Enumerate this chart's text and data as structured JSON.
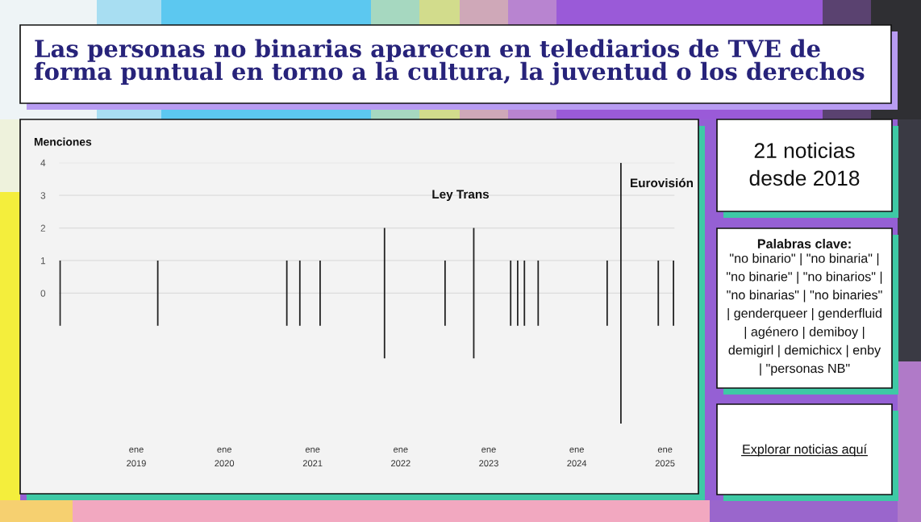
{
  "chart_data": [
    {
      "type": "bar",
      "title": "Las personas no binarias aparecen en telediarios de TVE de\nforma puntual en torno a la cultura, la juventud o los derechos",
      "ylabel": "Menciones",
      "x": [
        "2018-02-19",
        "2019-03-31",
        "2020-09-16",
        "2020-11-09",
        "2021-02-01",
        "2021-10-26",
        "2022-07-04",
        "2022-10-31",
        "2023-04-02",
        "2023-05-01",
        "2023-05-29",
        "2023-07-25",
        "2024-05-06",
        "2024-07-02",
        "2024-12-04",
        "2025-02-05"
      ],
      "base": [
        -1,
        -1,
        -1,
        -1,
        -1,
        -2,
        -1,
        -2,
        -1,
        -1,
        -1,
        -1,
        -1,
        -4,
        -1,
        -1
      ],
      "values": [
        2,
        2,
        2,
        2,
        2,
        4,
        2,
        4,
        2,
        2,
        2,
        2,
        2,
        8,
        2,
        2
      ],
      "color": "#222222",
      "xlim": [
        "2018-02-15",
        "2025-02-09"
      ],
      "xticks": [
        {
          "value": "2019-01-01",
          "label": "ene\n2019"
        },
        {
          "value": "2020-01-01",
          "label": "ene\n2020"
        },
        {
          "value": "2021-01-01",
          "label": "ene\n2021"
        },
        {
          "value": "2022-01-01",
          "label": "ene\n2022"
        },
        {
          "value": "2023-01-01",
          "label": "ene\n2023"
        },
        {
          "value": "2024-01-01",
          "label": "ene\n2024"
        },
        {
          "value": "2025-01-01",
          "label": "ene\n2025"
        }
      ],
      "ylim": [
        -4,
        4
      ],
      "yticks": [
        0,
        1,
        2,
        3,
        4
      ],
      "grid": "y",
      "annotations": [
        "Ley Trans",
        {
          "text": "Eurovisión",
          "x": "2024-07-02",
          "y": 4
        }
      ]
    },
    {
      "type": "other",
      "annotations": [
        "21 noticias\ndesde 2018"
      ]
    },
    {
      "type": "other",
      "title": "Palabras clave:",
      "annotations": [
        "\"no binario\" | \"no binaria\" |\n\"no binarie\" | \"no binarios\" |\n\"no binarias\" | \"no binaries\"\n| genderqueer | genderfluid\n| agénero | demiboy |\ndemigirl | demichicx | enby\n| \"personas NB\""
      ]
    },
    {
      "type": "other",
      "annotations": [
        "Explorar noticias aquí"
      ]
    }
  ]
}
